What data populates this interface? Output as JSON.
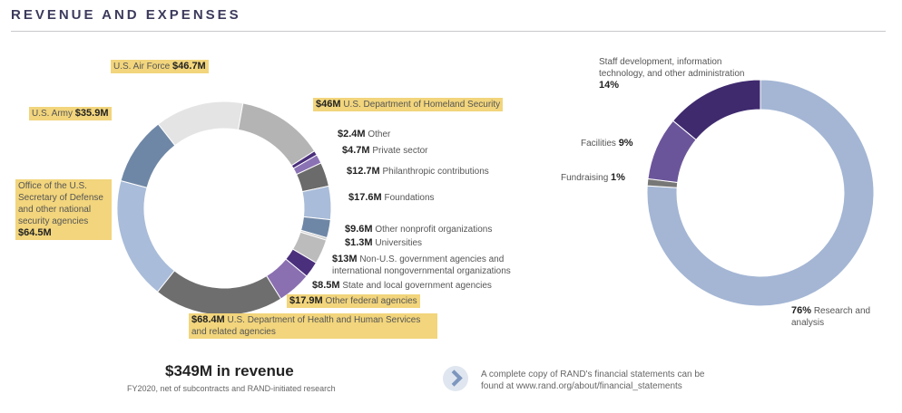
{
  "header": {
    "title": "REVENUE AND EXPENSES"
  },
  "chart_data": [
    {
      "type": "pie",
      "name": "Revenue sources",
      "unit": "$M",
      "slices": [
        {
          "label": "U.S. Air Force",
          "value": 46.7,
          "value_label": "$46.7M",
          "color": "#e4e4e4",
          "highlight": true
        },
        {
          "label": "U.S. Department of Homeland Security",
          "value": 46,
          "value_label": "$46M",
          "color": "#b4b4b4",
          "highlight": true
        },
        {
          "label": "Other",
          "value": 2.4,
          "value_label": "$2.4M",
          "color": "#4a2f7c",
          "highlight": false
        },
        {
          "label": "Private sector",
          "value": 4.7,
          "value_label": "$4.7M",
          "color": "#8b72b5",
          "highlight": false
        },
        {
          "label": "Philanthropic contributions",
          "value": 12.7,
          "value_label": "$12.7M",
          "color": "#6b6b6b",
          "highlight": false
        },
        {
          "label": "Foundations",
          "value": 17.6,
          "value_label": "$17.6M",
          "color": "#a9bcd9",
          "highlight": false
        },
        {
          "label": "Other nonprofit organizations",
          "value": 9.6,
          "value_label": "$9.6M",
          "color": "#6f87a6",
          "highlight": false
        },
        {
          "label": "Universities",
          "value": 1.3,
          "value_label": "$1.3M",
          "color": "#d0d0d0",
          "highlight": false
        },
        {
          "label": "Non-U.S. government agencies and international nongovernmental organizations",
          "value": 13,
          "value_label": "$13M",
          "color": "#bcbcbc",
          "highlight": false
        },
        {
          "label": "State and local government agencies",
          "value": 8.5,
          "value_label": "$8.5M",
          "color": "#4a2f7c",
          "highlight": false
        },
        {
          "label": "Other federal agencies",
          "value": 17.9,
          "value_label": "$17.9M",
          "color": "#8a70b0",
          "highlight": true
        },
        {
          "label": "U.S. Department of Health and Human Services and related agencies",
          "value": 68.4,
          "value_label": "$68.4M",
          "color": "#6e6e6e",
          "highlight": true
        },
        {
          "label": "Office of the U.S. Secretary of Defense and other national security agencies",
          "value": 64.5,
          "value_label": "$64.5M",
          "color": "#a9bcd9",
          "highlight": true
        },
        {
          "label": "U.S. Army",
          "value": 35.9,
          "value_label": "$35.9M",
          "color": "#6f87a6",
          "highlight": true
        }
      ],
      "total_label": "$349M in revenue",
      "subtitle": "FY2020, net of subcontracts and RAND-initiated research"
    },
    {
      "type": "pie",
      "name": "Expenses",
      "unit": "%",
      "slices": [
        {
          "label": "Research and analysis",
          "value": 76,
          "value_label": "76%",
          "color": "#a4b6d4"
        },
        {
          "label": "Fundraising",
          "value": 1,
          "value_label": "1%",
          "color": "#777777"
        },
        {
          "label": "Facilities",
          "value": 9,
          "value_label": "9%",
          "color": "#6b559a"
        },
        {
          "label": "Staff development, information technology, and other administration",
          "value": 14,
          "value_label": "14%",
          "color": "#3f2a6e"
        }
      ]
    }
  ],
  "footer": {
    "note_line1": "A complete copy of RAND's financial statements can be",
    "note_line2": "found at www.rand.org/about/financial_statements"
  }
}
